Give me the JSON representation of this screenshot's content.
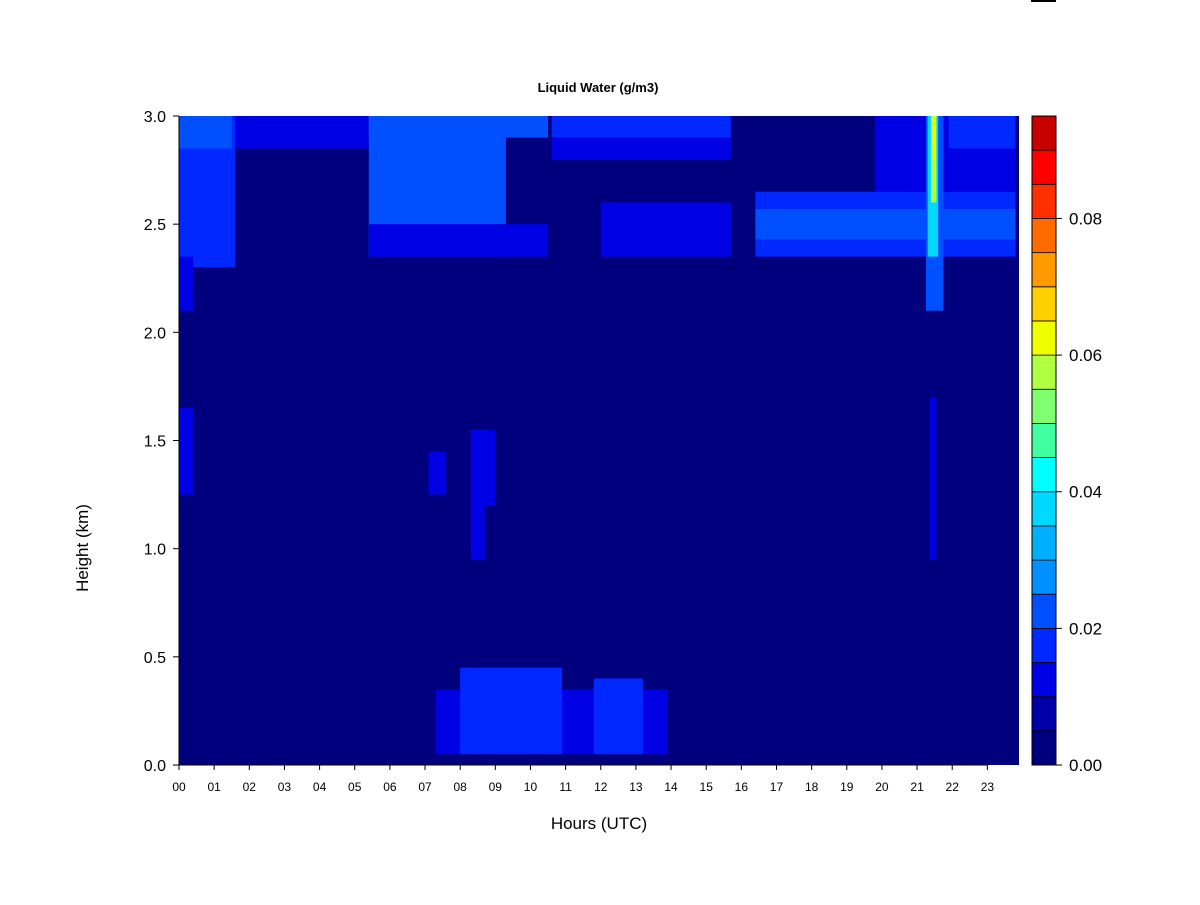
{
  "chart_data": {
    "type": "heatmap",
    "title": "Liquid Water (g/m3)",
    "xlabel": "Hours (UTC)",
    "ylabel": "Height (km)",
    "x_ticks": [
      "00",
      "01",
      "02",
      "03",
      "04",
      "05",
      "06",
      "07",
      "08",
      "09",
      "10",
      "11",
      "12",
      "13",
      "14",
      "15",
      "16",
      "17",
      "18",
      "19",
      "20",
      "21",
      "22",
      "23"
    ],
    "y_ticks": [
      "0.0",
      "0.5",
      "1.0",
      "1.5",
      "2.0",
      "2.5",
      "3.0"
    ],
    "xlim": [
      0,
      23.9
    ],
    "ylim": [
      0,
      3.0
    ],
    "colorbar": {
      "ticks": [
        "0.00",
        "0.02",
        "0.04",
        "0.06",
        "0.08"
      ],
      "range": [
        0,
        0.095
      ],
      "levels": [
        0,
        0.005,
        0.01,
        0.015,
        0.02,
        0.025,
        0.03,
        0.035,
        0.04,
        0.045,
        0.05,
        0.055,
        0.06,
        0.065,
        0.07,
        0.075,
        0.08,
        0.085,
        0.09,
        0.095
      ],
      "colors": [
        "#00007f",
        "#0000a8",
        "#0000e5",
        "#0028ff",
        "#0050ff",
        "#0090ff",
        "#00b0ff",
        "#00d8ff",
        "#00ffff",
        "#40ffa0",
        "#80ff70",
        "#b0ff40",
        "#f0ff00",
        "#ffd000",
        "#ff9a00",
        "#ff6a00",
        "#ff3000",
        "#ff0000",
        "#c80000",
        "#800000"
      ]
    },
    "regions": [
      {
        "x": [
          0.0,
          1.6
        ],
        "y": [
          2.3,
          3.0
        ],
        "value": 0.017
      },
      {
        "x": [
          0.0,
          0.4
        ],
        "y": [
          2.1,
          2.35
        ],
        "value": 0.013
      },
      {
        "x": [
          0.0,
          0.4
        ],
        "y": [
          1.25,
          1.65
        ],
        "value": 0.013
      },
      {
        "x": [
          0.0,
          1.5
        ],
        "y": [
          2.85,
          3.0
        ],
        "value": 0.021
      },
      {
        "x": [
          1.6,
          5.4
        ],
        "y": [
          2.85,
          3.0
        ],
        "value": 0.012
      },
      {
        "x": [
          5.4,
          9.3
        ],
        "y": [
          2.35,
          3.0
        ],
        "value": 0.02
      },
      {
        "x": [
          5.4,
          10.5
        ],
        "y": [
          2.35,
          2.5
        ],
        "value": 0.014
      },
      {
        "x": [
          5.4,
          10.5
        ],
        "y": [
          2.9,
          3.0
        ],
        "value": 0.022
      },
      {
        "x": [
          10.6,
          15.7
        ],
        "y": [
          2.9,
          3.0
        ],
        "value": 0.018
      },
      {
        "x": [
          10.6,
          15.7
        ],
        "y": [
          2.8,
          2.9
        ],
        "value": 0.013
      },
      {
        "x": [
          12.0,
          15.7
        ],
        "y": [
          2.35,
          2.6
        ],
        "value": 0.013
      },
      {
        "x": [
          16.4,
          23.8
        ],
        "y": [
          2.35,
          2.65
        ],
        "value": 0.017
      },
      {
        "x": [
          16.4,
          23.8
        ],
        "y": [
          2.43,
          2.57
        ],
        "value": 0.021
      },
      {
        "x": [
          19.8,
          23.8
        ],
        "y": [
          2.65,
          3.0
        ],
        "value": 0.014
      },
      {
        "x": [
          21.9,
          23.8
        ],
        "y": [
          2.85,
          3.0
        ],
        "value": 0.019
      },
      {
        "x": [
          7.1,
          7.6
        ],
        "y": [
          1.25,
          1.45
        ],
        "value": 0.011
      },
      {
        "x": [
          8.3,
          9.0
        ],
        "y": [
          1.2,
          1.55
        ],
        "value": 0.012
      },
      {
        "x": [
          8.3,
          8.7
        ],
        "y": [
          0.95,
          1.2
        ],
        "value": 0.011
      },
      {
        "x": [
          7.3,
          13.9
        ],
        "y": [
          0.05,
          0.35
        ],
        "value": 0.011
      },
      {
        "x": [
          8.0,
          10.9
        ],
        "y": [
          0.05,
          0.45
        ],
        "value": 0.017
      },
      {
        "x": [
          11.8,
          13.2
        ],
        "y": [
          0.05,
          0.4
        ],
        "value": 0.016
      },
      {
        "x": [
          21.25,
          21.75
        ],
        "y": [
          2.1,
          3.0
        ],
        "value": 0.024
      },
      {
        "x": [
          21.3,
          21.6
        ],
        "y": [
          2.35,
          3.0
        ],
        "value": 0.035
      },
      {
        "x": [
          21.4,
          21.55
        ],
        "y": [
          2.6,
          3.0
        ],
        "value": 0.055
      },
      {
        "x": [
          21.44,
          21.52
        ],
        "y": [
          2.8,
          3.0
        ],
        "value": 0.062
      },
      {
        "x": [
          21.35,
          21.55
        ],
        "y": [
          0.95,
          1.7
        ],
        "value": 0.014
      }
    ]
  }
}
